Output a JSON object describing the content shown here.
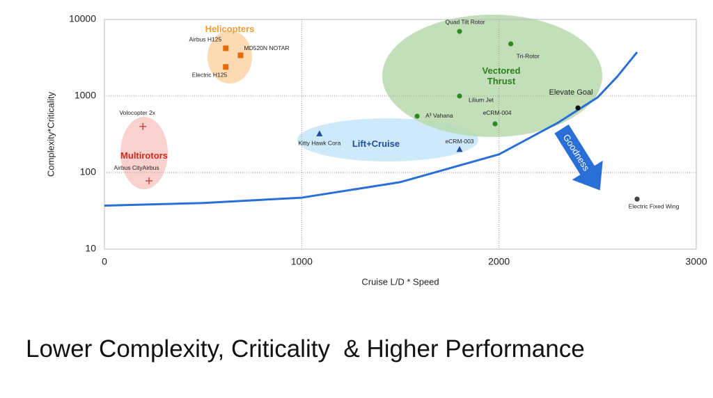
{
  "chart_data": {
    "type": "scatter",
    "x_label": "Cruise L/D * Speed",
    "y_label": "Complexity*Criticality",
    "xlim": [
      0,
      3000
    ],
    "ylim": [
      10,
      10000
    ],
    "y_log": true,
    "grid": true,
    "xticks": [
      0,
      1000,
      2000,
      3000
    ],
    "yticks": [
      10,
      100,
      1000,
      10000
    ],
    "groups": [
      {
        "name": "Helicopters",
        "color": "#f39c34",
        "fill": "#fbd3a4"
      },
      {
        "name": "Multirotors",
        "color": "#d9261c",
        "fill": "#f8c9c5"
      },
      {
        "name": "Lift+Cruise",
        "color": "#1f4e9c",
        "fill": "#c6e5f8"
      },
      {
        "name": "Vectored Thrust",
        "color": "#2e7d1f",
        "fill": "#b7d9ad"
      }
    ],
    "points": [
      {
        "label": "Airbus H125",
        "x": 615,
        "y": 4200,
        "marker": "square",
        "color": "#e36c09"
      },
      {
        "label": "MD520N NOTAR",
        "x": 690,
        "y": 3400,
        "marker": "square",
        "color": "#e36c09"
      },
      {
        "label": "Electric H125",
        "x": 615,
        "y": 2400,
        "marker": "square",
        "color": "#e36c09"
      },
      {
        "label": "Volocopter 2x",
        "x": 195,
        "y": 400,
        "marker": "plus",
        "color": "#c0392b"
      },
      {
        "label": "Airbus CityAirbus",
        "x": 226,
        "y": 78,
        "marker": "plus",
        "color": "#c0392b"
      },
      {
        "label": "Kitty Hawk Cora",
        "x": 1090,
        "y": 320,
        "marker": "triangle",
        "color": "#1f4e9c"
      },
      {
        "label": "eCRM-003",
        "x": 1800,
        "y": 200,
        "marker": "triangle",
        "color": "#1f4e9c"
      },
      {
        "label": "Quad Tilt Rotor",
        "x": 1800,
        "y": 7000,
        "marker": "circle",
        "color": "#2e8b22"
      },
      {
        "label": "Tri-Rotor",
        "x": 2060,
        "y": 4800,
        "marker": "circle",
        "color": "#2e8b22"
      },
      {
        "label": "Lilium Jet",
        "x": 1800,
        "y": 1000,
        "marker": "circle",
        "color": "#2e8b22"
      },
      {
        "label": "A³ Vahana",
        "x": 1585,
        "y": 545,
        "marker": "circle",
        "color": "#2e8b22"
      },
      {
        "label": "eCRM-004",
        "x": 1980,
        "y": 433,
        "marker": "circle",
        "color": "#2e8b22"
      },
      {
        "label": "Elevate Goal",
        "x": 2400,
        "y": 700,
        "marker": "circle",
        "color": "#111111"
      },
      {
        "label": "Electric Fixed Wing",
        "x": 2700,
        "y": 45,
        "marker": "circle",
        "color": "#444444"
      }
    ],
    "trend": {
      "color": "#2a6fd8",
      "x": [
        0,
        500,
        1000,
        1500,
        2000,
        2300,
        2500,
        2600,
        2700
      ],
      "values": [
        37,
        40,
        47,
        75,
        173,
        450,
        960,
        1800,
        3740
      ]
    },
    "arrow_label": "Goodness"
  },
  "caption": "Lower Complexity, Criticality  & Higher Performance"
}
